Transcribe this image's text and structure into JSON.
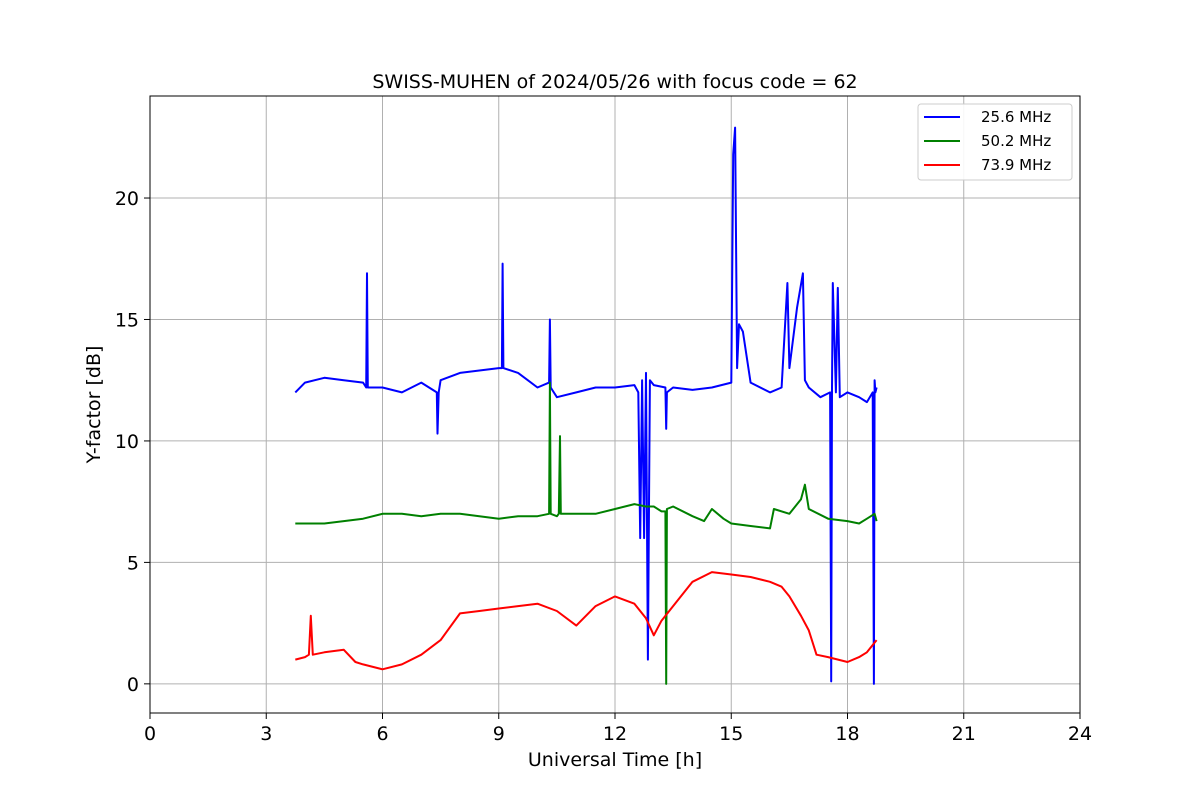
{
  "chart_data": {
    "type": "line",
    "title": "SWISS-MUHEN of 2024/05/26 with focus code = 62",
    "xlabel": "Universal Time [h]",
    "ylabel": "Y-factor [dB]",
    "xlim": [
      0,
      24
    ],
    "ylim": [
      -1.2,
      24.2
    ],
    "xticks": [
      0,
      3,
      6,
      9,
      12,
      15,
      18,
      21,
      24
    ],
    "yticks": [
      0,
      5,
      10,
      15,
      20
    ],
    "xtick_labels": [
      "0",
      "3",
      "6",
      "9",
      "12",
      "15",
      "18",
      "21",
      "24"
    ],
    "ytick_labels": [
      "0",
      "5",
      "10",
      "15",
      "20"
    ],
    "grid": true,
    "legend_position": "top-right",
    "series": [
      {
        "name": "25.6 MHz",
        "color": "#0000ff",
        "x": [
          3.75,
          4.0,
          4.5,
          5.0,
          5.5,
          5.58,
          5.6,
          5.62,
          6.0,
          6.5,
          7.0,
          7.4,
          7.42,
          7.45,
          7.5,
          8.0,
          8.5,
          9.0,
          9.08,
          9.1,
          9.12,
          9.5,
          10.0,
          10.3,
          10.32,
          10.34,
          10.5,
          11.0,
          11.5,
          12.0,
          12.5,
          12.6,
          12.65,
          12.7,
          12.75,
          12.8,
          12.85,
          12.9,
          13.0,
          13.3,
          13.32,
          13.34,
          13.5,
          14.0,
          14.5,
          15.0,
          15.05,
          15.1,
          15.15,
          15.2,
          15.3,
          15.5,
          16.0,
          16.3,
          16.45,
          16.5,
          16.7,
          16.85,
          16.9,
          17.0,
          17.3,
          17.55,
          17.58,
          17.6,
          17.62,
          17.7,
          17.75,
          17.8,
          18.0,
          18.3,
          18.5,
          18.65,
          18.68,
          18.7,
          18.72,
          18.75
        ],
        "values": [
          12.0,
          12.4,
          12.6,
          12.5,
          12.4,
          12.2,
          16.9,
          12.2,
          12.2,
          12.0,
          12.4,
          12.0,
          10.3,
          12.0,
          12.5,
          12.8,
          12.9,
          13.0,
          13.0,
          17.3,
          13.0,
          12.8,
          12.2,
          12.4,
          15.0,
          12.2,
          11.8,
          12.0,
          12.2,
          12.2,
          12.3,
          12.0,
          6.0,
          12.5,
          6.0,
          12.8,
          1.0,
          12.5,
          12.3,
          12.2,
          10.5,
          12.0,
          12.2,
          12.1,
          12.2,
          12.4,
          21.8,
          22.9,
          13.0,
          14.8,
          14.5,
          12.4,
          12.0,
          12.2,
          16.5,
          13.0,
          15.5,
          16.9,
          12.5,
          12.2,
          11.8,
          12.0,
          0.1,
          12.2,
          16.5,
          12.0,
          16.3,
          11.8,
          12.0,
          11.8,
          11.6,
          12.0,
          0.0,
          12.5,
          12.0,
          12.2
        ]
      },
      {
        "name": "50.2 MHz",
        "color": "#008000",
        "x": [
          3.75,
          4.0,
          4.5,
          5.0,
          5.5,
          6.0,
          6.5,
          7.0,
          7.5,
          8.0,
          8.5,
          9.0,
          9.5,
          10.0,
          10.3,
          10.32,
          10.34,
          10.5,
          10.55,
          10.58,
          10.6,
          11.0,
          11.5,
          12.0,
          12.5,
          12.8,
          13.0,
          13.2,
          13.3,
          13.32,
          13.34,
          13.5,
          14.0,
          14.3,
          14.5,
          14.8,
          15.0,
          15.5,
          16.0,
          16.1,
          16.5,
          16.8,
          16.9,
          17.0,
          17.5,
          18.0,
          18.3,
          18.5,
          18.7,
          18.75
        ],
        "values": [
          6.6,
          6.6,
          6.6,
          6.7,
          6.8,
          7.0,
          7.0,
          6.9,
          7.0,
          7.0,
          6.9,
          6.8,
          6.9,
          6.9,
          7.0,
          12.4,
          7.0,
          6.9,
          7.0,
          10.2,
          7.0,
          7.0,
          7.0,
          7.2,
          7.4,
          7.3,
          7.3,
          7.1,
          7.1,
          0.0,
          7.2,
          7.3,
          6.9,
          6.7,
          7.2,
          6.8,
          6.6,
          6.5,
          6.4,
          7.2,
          7.0,
          7.6,
          8.2,
          7.2,
          6.8,
          6.7,
          6.6,
          6.8,
          7.0,
          6.7
        ]
      },
      {
        "name": "73.9 MHz",
        "color": "#ff0000",
        "x": [
          3.75,
          4.0,
          4.1,
          4.15,
          4.2,
          4.5,
          5.0,
          5.3,
          5.5,
          6.0,
          6.5,
          7.0,
          7.5,
          8.0,
          8.5,
          9.0,
          9.5,
          10.0,
          10.5,
          11.0,
          11.5,
          12.0,
          12.5,
          12.8,
          13.0,
          13.2,
          13.5,
          14.0,
          14.5,
          15.0,
          15.5,
          16.0,
          16.3,
          16.5,
          16.8,
          17.0,
          17.2,
          17.5,
          18.0,
          18.3,
          18.5,
          18.75
        ],
        "values": [
          1.0,
          1.1,
          1.2,
          2.8,
          1.2,
          1.3,
          1.4,
          0.9,
          0.8,
          0.6,
          0.8,
          1.2,
          1.8,
          2.9,
          3.0,
          3.1,
          3.2,
          3.3,
          3.0,
          2.4,
          3.2,
          3.6,
          3.3,
          2.7,
          2.0,
          2.6,
          3.2,
          4.2,
          4.6,
          4.5,
          4.4,
          4.2,
          4.0,
          3.6,
          2.8,
          2.2,
          1.2,
          1.1,
          0.9,
          1.1,
          1.3,
          1.8
        ]
      }
    ]
  }
}
